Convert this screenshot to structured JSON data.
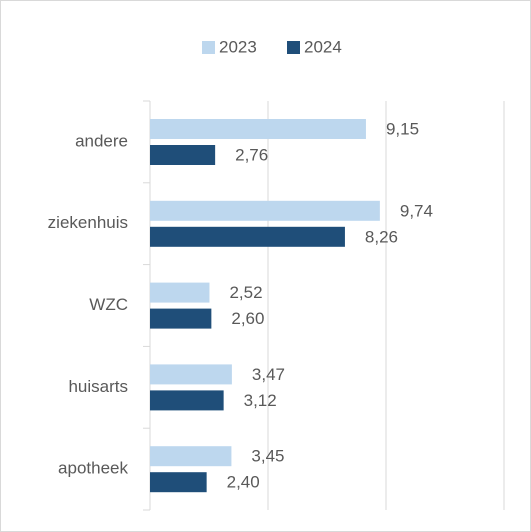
{
  "chart_data": {
    "type": "bar",
    "orientation": "horizontal",
    "categories": [
      "andere",
      "ziekenhuis",
      "WZC",
      "huisarts",
      "apotheek"
    ],
    "series": [
      {
        "name": "2023",
        "color": "#bdd7ee",
        "values": [
          9.15,
          9.74,
          2.52,
          3.47,
          3.45
        ],
        "value_labels": [
          "9,15",
          "9,74",
          "2,52",
          "3,47",
          "3,45"
        ]
      },
      {
        "name": "2024",
        "color": "#1f4e79",
        "values": [
          2.76,
          8.26,
          2.6,
          3.12,
          2.4
        ],
        "value_labels": [
          "2,76",
          "8,26",
          "2,60",
          "3,12",
          "2,40"
        ]
      }
    ],
    "xlim": [
      0,
      15
    ],
    "xticks": [
      0,
      5,
      10,
      15
    ],
    "grid": true,
    "legend": "top"
  }
}
